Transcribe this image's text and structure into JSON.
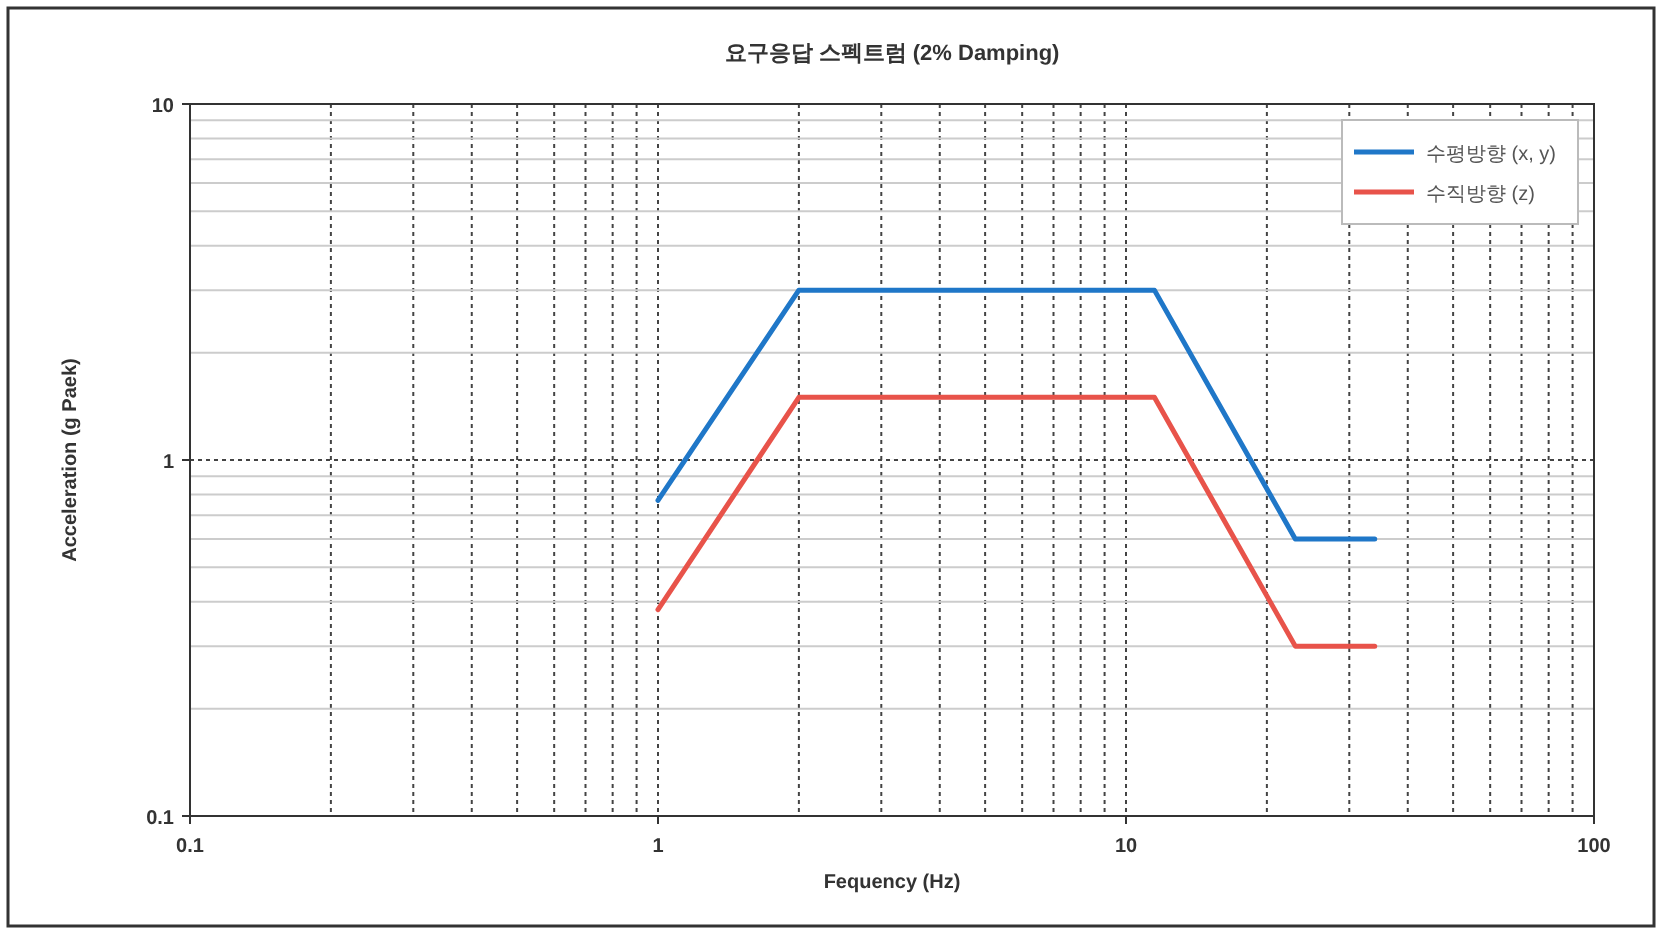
{
  "chart_data": {
    "type": "line",
    "title": "요구응답 스펙트럼 (2% Damping)",
    "xlabel": "Fequency (Hz)",
    "ylabel": "Acceleration (g Paek)",
    "log": "xy",
    "xlim": [
      0.1,
      100
    ],
    "ylim": [
      0.1,
      10
    ],
    "xticks": [
      0.1,
      1,
      10,
      100
    ],
    "yticks": [
      0.1,
      1,
      10
    ],
    "grid": true,
    "legend": "top right",
    "marker": "none",
    "line_style": "solid",
    "series": [
      {
        "name": "수평방향 (x, y)",
        "color": "#1f77c8",
        "x": [
          1,
          2,
          11.5,
          23,
          34
        ],
        "values": [
          0.77,
          3.0,
          3.0,
          0.6,
          0.6
        ]
      },
      {
        "name": "수직방향 (z)",
        "color": "#e8534a",
        "x": [
          1,
          2,
          11.5,
          23,
          34
        ],
        "values": [
          0.38,
          1.5,
          1.5,
          0.3,
          0.3
        ]
      }
    ]
  }
}
